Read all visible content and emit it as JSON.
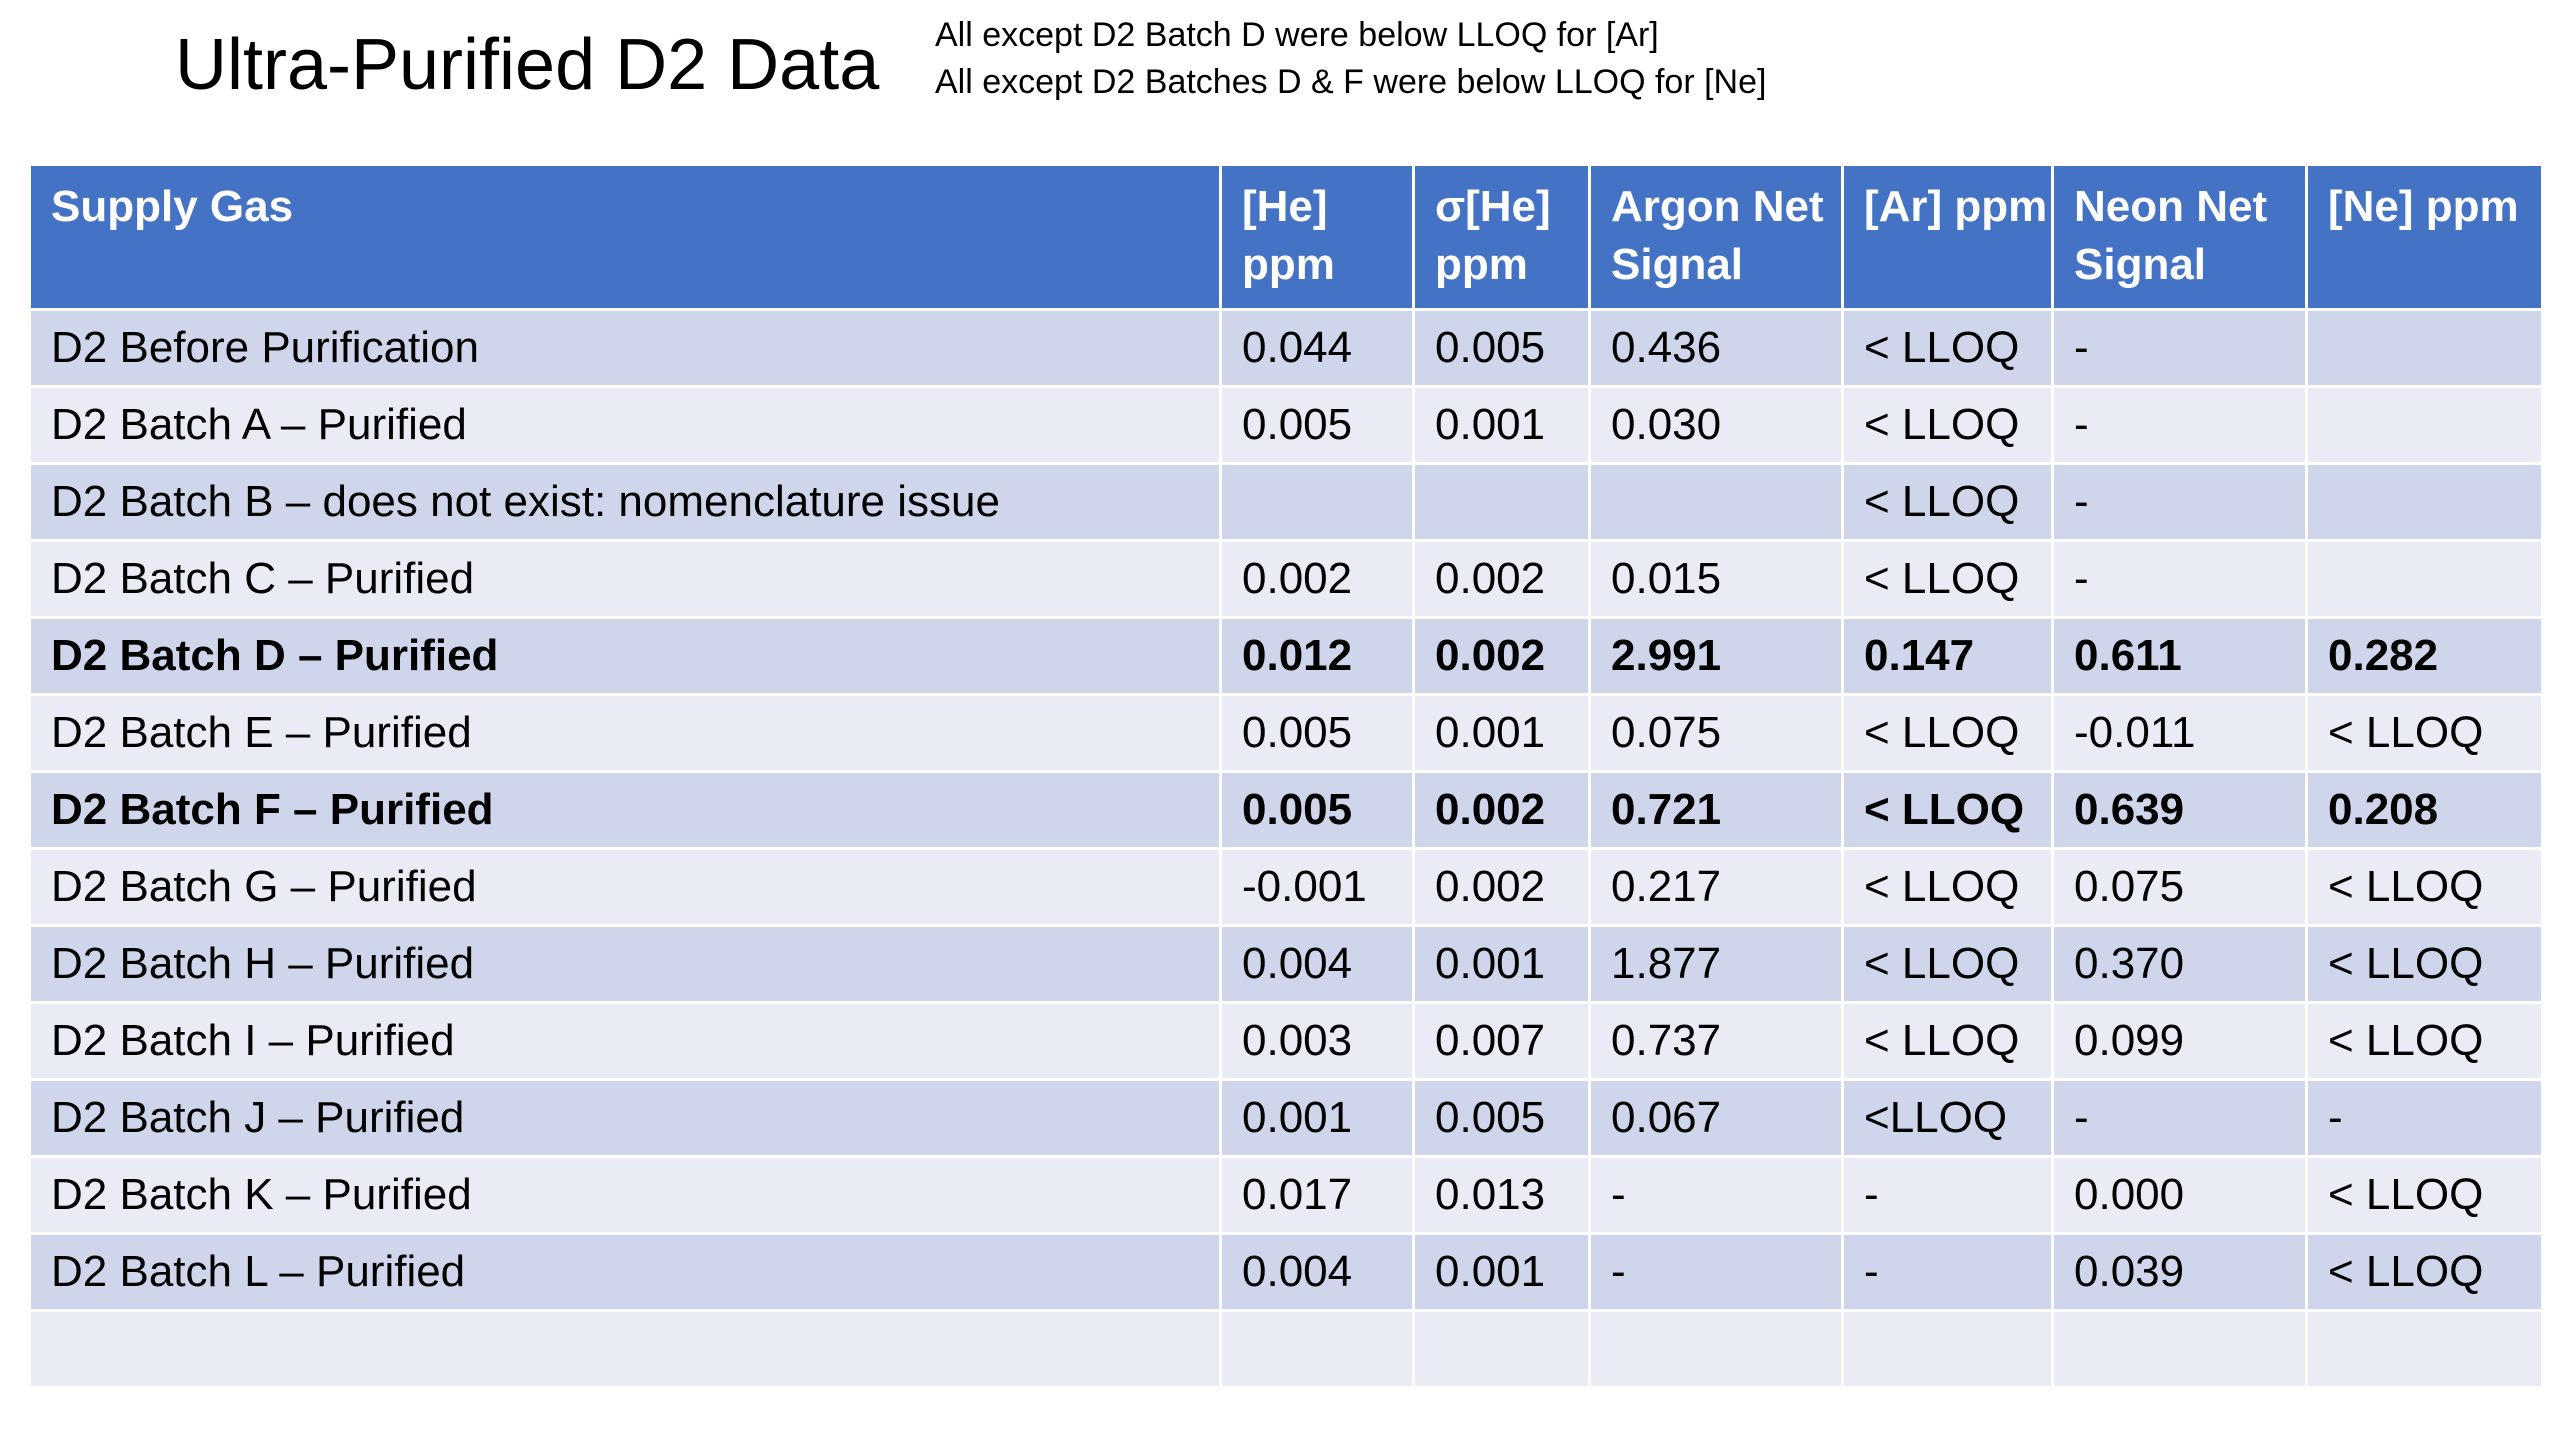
{
  "title": "Ultra-Purified D2 Data",
  "notes": [
    "All except D2 Batch D were below LLOQ for [Ar]",
    "All except D2 Batches D & F were below LLOQ for [Ne]"
  ],
  "table": {
    "headers": [
      "Supply Gas",
      "[He] ppm",
      "σ[He] ppm",
      "Argon Net Signal",
      "[Ar] ppm",
      "Neon Net Signal",
      "[Ne] ppm"
    ],
    "rows": [
      {
        "cells": [
          "D2 Before Purification",
          "0.044",
          "0.005",
          "0.436",
          "< LLOQ",
          "-",
          ""
        ],
        "bold": false
      },
      {
        "cells": [
          "D2 Batch A – Purified",
          "0.005",
          "0.001",
          "0.030",
          "< LLOQ",
          "-",
          ""
        ],
        "bold": false
      },
      {
        "cells": [
          "D2 Batch B – does not exist: nomenclature issue",
          "",
          "",
          "",
          "< LLOQ",
          "-",
          ""
        ],
        "bold": false
      },
      {
        "cells": [
          "D2 Batch C – Purified",
          "0.002",
          "0.002",
          "0.015",
          "< LLOQ",
          "-",
          ""
        ],
        "bold": false
      },
      {
        "cells": [
          "D2 Batch D – Purified",
          "0.012",
          "0.002",
          "2.991",
          "0.147",
          "0.611",
          "0.282"
        ],
        "bold": true
      },
      {
        "cells": [
          "D2 Batch E – Purified",
          "0.005",
          "0.001",
          "0.075",
          "< LLOQ",
          "-0.011",
          "< LLOQ"
        ],
        "bold": false
      },
      {
        "cells": [
          "D2 Batch F – Purified",
          "0.005",
          "0.002",
          "0.721",
          "< LLOQ",
          "0.639",
          "0.208"
        ],
        "bold": true
      },
      {
        "cells": [
          "D2 Batch G – Purified",
          "-0.001",
          "0.002",
          "0.217",
          "< LLOQ",
          "0.075",
          "< LLOQ"
        ],
        "bold": false
      },
      {
        "cells": [
          "D2 Batch H – Purified",
          "0.004",
          "0.001",
          "1.877",
          "< LLOQ",
          "0.370",
          "< LLOQ"
        ],
        "bold": false
      },
      {
        "cells": [
          "D2 Batch I – Purified",
          "0.003",
          "0.007",
          "0.737",
          "< LLOQ",
          "0.099",
          "< LLOQ"
        ],
        "bold": false
      },
      {
        "cells": [
          "D2 Batch J – Purified",
          "0.001",
          "0.005",
          "0.067",
          "<LLOQ",
          "-",
          "-"
        ],
        "bold": false
      },
      {
        "cells": [
          "D2 Batch K – Purified",
          "0.017",
          "0.013",
          "-",
          "-",
          "0.000",
          "< LLOQ"
        ],
        "bold": false
      },
      {
        "cells": [
          "D2 Batch L – Purified",
          "0.004",
          "0.001",
          "-",
          "-",
          "0.039",
          "< LLOQ"
        ],
        "bold": false
      },
      {
        "cells": [
          "",
          "",
          "",
          "",
          "",
          "",
          ""
        ],
        "bold": false
      }
    ]
  },
  "colors": {
    "header_bg": "#4472C4",
    "row_odd": "#CFD5EA",
    "row_even": "#E9EBF5"
  }
}
